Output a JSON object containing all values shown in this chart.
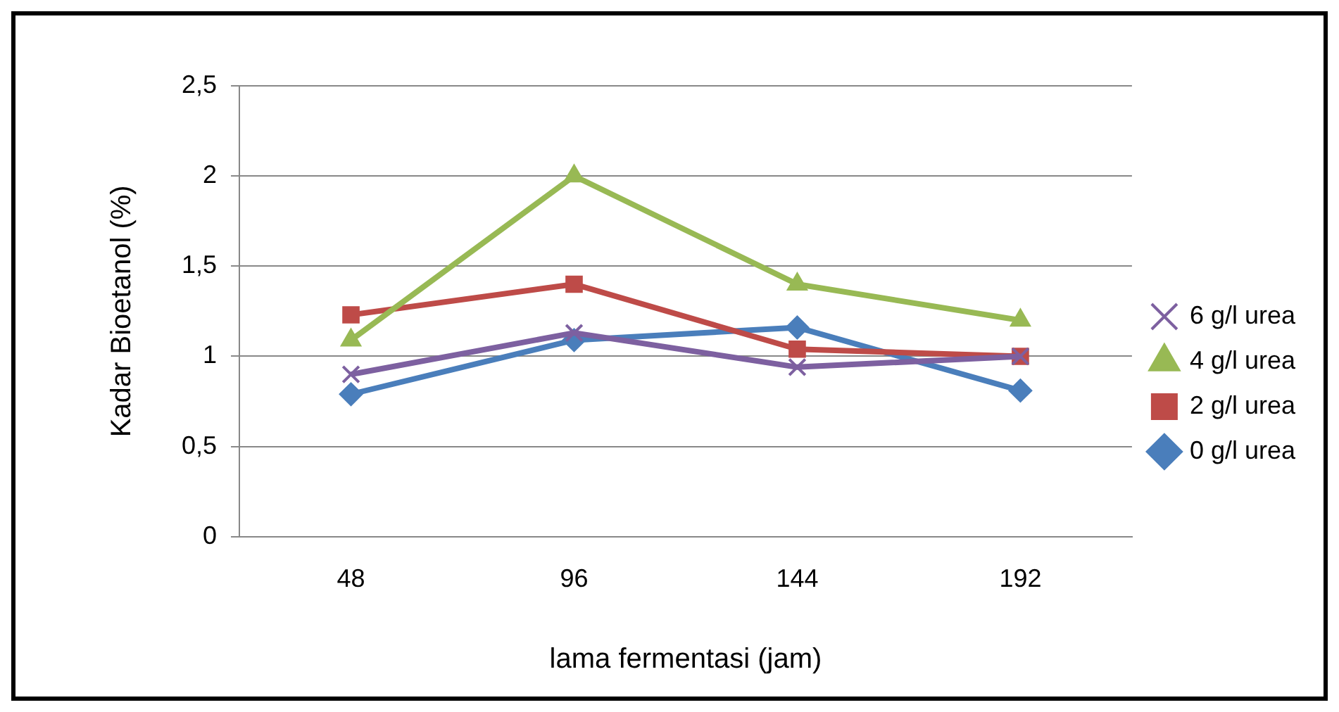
{
  "chart_data": {
    "type": "line",
    "xlabel": "lama fermentasi (jam)",
    "ylabel": "Kadar Bioetanol (%)",
    "categories": [
      "48",
      "96",
      "144",
      "192"
    ],
    "series": [
      {
        "name": "0 g/l urea",
        "color": "#4a7ebb",
        "marker": "diamond",
        "values": [
          0.79,
          1.09,
          1.16,
          0.81
        ]
      },
      {
        "name": "2 g/l urea",
        "color": "#be4b48",
        "marker": "square",
        "values": [
          1.23,
          1.4,
          1.04,
          1.0
        ]
      },
      {
        "name": "4 g/l urea",
        "color": "#98b954",
        "marker": "triangle",
        "values": [
          1.09,
          2.0,
          1.4,
          1.2
        ]
      },
      {
        "name": "6 g/l urea",
        "color": "#7d60a0",
        "marker": "cross",
        "values": [
          0.9,
          1.13,
          0.94,
          1.0
        ]
      }
    ],
    "ylim": [
      0,
      2.5
    ],
    "yticks": [
      0,
      {
        "value": 0.5,
        "label": "0,5"
      },
      1,
      {
        "value": 1.5,
        "label": "1,5"
      },
      2,
      {
        "value": 2.5,
        "label": "2,5"
      }
    ],
    "grid": "y",
    "legend": "right",
    "line_style": "solid"
  }
}
